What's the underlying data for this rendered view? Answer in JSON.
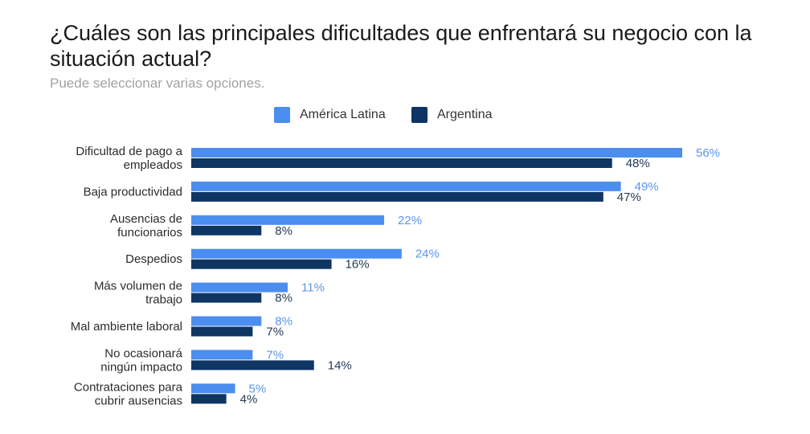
{
  "chart_data": {
    "type": "bar",
    "orientation": "horizontal",
    "title": "¿Cuáles son las principales dificultades que enfrentará su negocio con la situación actual?",
    "subtitle": "Puede seleccionar varias opciones.",
    "legend_position": "top",
    "grid": false,
    "xlim": [
      0,
      60
    ],
    "categories": [
      [
        "Dificultad de pago a",
        "empleados"
      ],
      [
        "Baja productividad"
      ],
      [
        "Ausencias de",
        "funcionarios"
      ],
      [
        "Despedios"
      ],
      [
        "Más volumen de",
        "trabajo"
      ],
      [
        "Mal ambiente laboral"
      ],
      [
        "No ocasionará",
        "ningún impacto"
      ],
      [
        "Contrataciones para",
        "cubrir ausencias"
      ]
    ],
    "series": [
      {
        "name": "América Latina",
        "color": "#4b8ef0",
        "label_color": "#5b96ea",
        "values": [
          56,
          49,
          22,
          24,
          11,
          8,
          7,
          5
        ],
        "labels": [
          "56%",
          "49%",
          "22%",
          "24%",
          "11%",
          "8%",
          "7%",
          "5%"
        ]
      },
      {
        "name": "Argentina",
        "color": "#0f3563",
        "label_color": "#233b57",
        "values": [
          48,
          47,
          8,
          16,
          8,
          7,
          14,
          4
        ],
        "labels": [
          "48%",
          "47%",
          "8%",
          "16%",
          "8%",
          "7%",
          "14%",
          "4%"
        ]
      }
    ]
  }
}
